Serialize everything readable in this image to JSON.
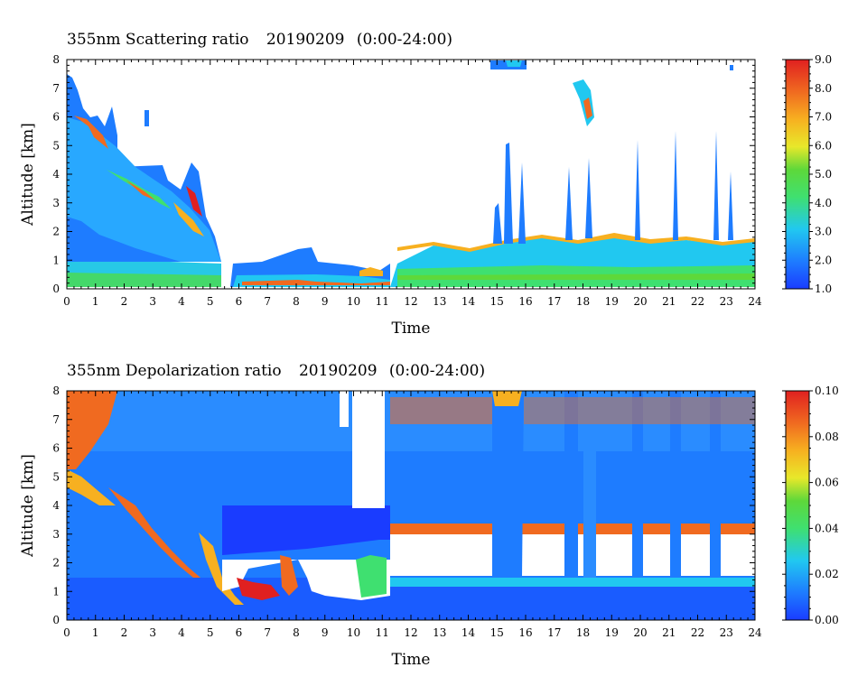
{
  "chart_data": [
    {
      "type": "heatmap",
      "title": "355nm Scattering ratio",
      "date": "20190209",
      "time_range": "(0:00-24:00)",
      "xlabel": "Time",
      "ylabel": "Altitude [km]",
      "xlim": [
        0,
        24
      ],
      "ylim": [
        0,
        8
      ],
      "x_ticks": [
        "0",
        "1",
        "2",
        "3",
        "4",
        "5",
        "6",
        "7",
        "8",
        "9",
        "10",
        "11",
        "12",
        "13",
        "14",
        "15",
        "16",
        "17",
        "18",
        "19",
        "20",
        "21",
        "22",
        "23",
        "24"
      ],
      "y_ticks": [
        "0",
        "1",
        "2",
        "3",
        "4",
        "5",
        "6",
        "7",
        "8"
      ],
      "colorbar": {
        "range": [
          1.0,
          9.0
        ],
        "ticks": [
          "1.0",
          "2.0",
          "3.0",
          "4.0",
          "5.0",
          "6.0",
          "7.0",
          "8.0",
          "9.0"
        ],
        "colormap": [
          "#1a3cff",
          "#1e7cff",
          "#21c8f0",
          "#3fe070",
          "#5ed83a",
          "#e8e82a",
          "#f7b020",
          "#f06a20",
          "#e02020"
        ]
      }
    },
    {
      "type": "heatmap",
      "title": "355nm Depolarization ratio",
      "date": "20190209",
      "time_range": "(0:00-24:00)",
      "xlabel": "Time",
      "ylabel": "Altitude [km]",
      "xlim": [
        0,
        24
      ],
      "ylim": [
        0,
        8
      ],
      "x_ticks": [
        "0",
        "1",
        "2",
        "3",
        "4",
        "5",
        "6",
        "7",
        "8",
        "9",
        "10",
        "11",
        "12",
        "13",
        "14",
        "15",
        "16",
        "17",
        "18",
        "19",
        "20",
        "21",
        "22",
        "23",
        "24"
      ],
      "y_ticks": [
        "0",
        "1",
        "2",
        "3",
        "4",
        "5",
        "6",
        "7",
        "8"
      ],
      "colorbar": {
        "range": [
          0.0,
          0.1
        ],
        "ticks": [
          "0.00",
          "0.02",
          "0.04",
          "0.06",
          "0.08",
          "0.10"
        ],
        "colormap": [
          "#1a3cff",
          "#1e7cff",
          "#21c8f0",
          "#3fe070",
          "#5ed83a",
          "#e8e82a",
          "#f7b020",
          "#f06a20",
          "#e02020"
        ]
      }
    }
  ]
}
